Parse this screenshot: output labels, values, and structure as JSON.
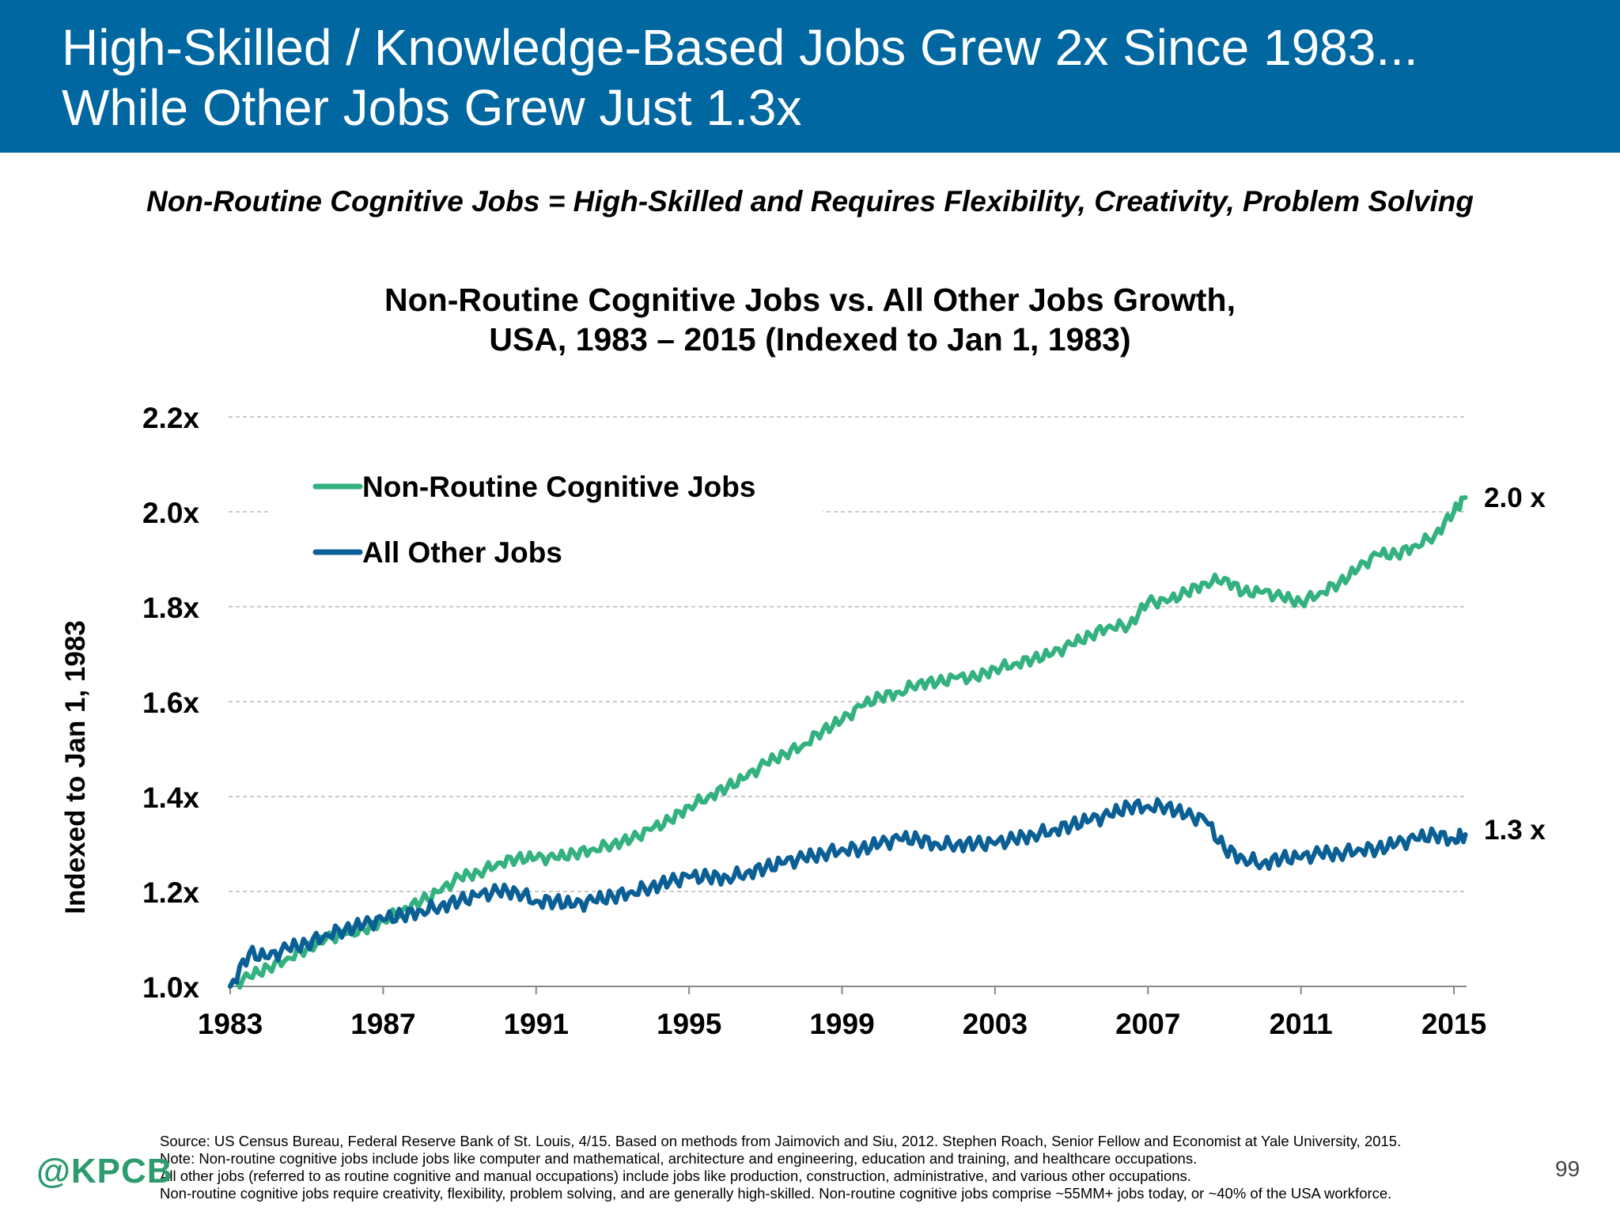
{
  "header": {
    "title_line1": "High-Skilled / Knowledge-Based Jobs Grew 2x Since 1983...",
    "title_line2": "While Other Jobs Grew Just 1.3x"
  },
  "subtitle": "Non-Routine Cognitive Jobs = High-Skilled and Requires Flexibility, Creativity, Problem Solving",
  "chart_data": {
    "type": "line",
    "title_line1": "Non-Routine Cognitive Jobs vs. All Other Jobs Growth,",
    "title_line2": "USA, 1983 – 2015 (Indexed to Jan 1, 1983)",
    "xlabel": "",
    "ylabel": "Indexed to Jan 1, 1983",
    "x_ticks": [
      "1983",
      "1987",
      "1991",
      "1995",
      "1999",
      "2003",
      "2007",
      "2011",
      "2015"
    ],
    "y_ticks": [
      "1.0x",
      "1.2x",
      "1.4x",
      "1.6x",
      "1.8x",
      "2.0x",
      "2.2x"
    ],
    "xlim": [
      1983,
      2015.3
    ],
    "ylim": [
      1.0,
      2.2
    ],
    "grid": "horizontal dashed",
    "legend_position": "top-left",
    "series": [
      {
        "name": "Non-Routine Cognitive Jobs",
        "color": "#33b17f",
        "end_label": "2.0 x",
        "points": [
          [
            1983.0,
            1.0
          ],
          [
            1983.5,
            1.02
          ],
          [
            1984.0,
            1.04
          ],
          [
            1984.5,
            1.06
          ],
          [
            1985.0,
            1.08
          ],
          [
            1985.5,
            1.1
          ],
          [
            1986.0,
            1.11
          ],
          [
            1986.5,
            1.12
          ],
          [
            1987.0,
            1.14
          ],
          [
            1987.5,
            1.16
          ],
          [
            1988.0,
            1.18
          ],
          [
            1988.5,
            1.2
          ],
          [
            1989.0,
            1.23
          ],
          [
            1989.5,
            1.24
          ],
          [
            1990.0,
            1.26
          ],
          [
            1990.5,
            1.27
          ],
          [
            1991.0,
            1.27
          ],
          [
            1991.5,
            1.27
          ],
          [
            1992.0,
            1.28
          ],
          [
            1992.5,
            1.29
          ],
          [
            1993.0,
            1.3
          ],
          [
            1993.5,
            1.31
          ],
          [
            1994.0,
            1.33
          ],
          [
            1994.5,
            1.35
          ],
          [
            1995.0,
            1.38
          ],
          [
            1995.5,
            1.4
          ],
          [
            1996.0,
            1.42
          ],
          [
            1996.5,
            1.44
          ],
          [
            1997.0,
            1.47
          ],
          [
            1997.5,
            1.49
          ],
          [
            1998.0,
            1.51
          ],
          [
            1998.5,
            1.54
          ],
          [
            1999.0,
            1.56
          ],
          [
            1999.5,
            1.59
          ],
          [
            2000.0,
            1.61
          ],
          [
            2000.5,
            1.62
          ],
          [
            2001.0,
            1.64
          ],
          [
            2001.5,
            1.64
          ],
          [
            2002.0,
            1.65
          ],
          [
            2002.5,
            1.65
          ],
          [
            2003.0,
            1.67
          ],
          [
            2003.5,
            1.68
          ],
          [
            2004.0,
            1.69
          ],
          [
            2004.5,
            1.7
          ],
          [
            2005.0,
            1.72
          ],
          [
            2005.5,
            1.74
          ],
          [
            2006.0,
            1.76
          ],
          [
            2006.5,
            1.76
          ],
          [
            2007.0,
            1.81
          ],
          [
            2007.5,
            1.81
          ],
          [
            2008.0,
            1.83
          ],
          [
            2008.5,
            1.85
          ],
          [
            2009.0,
            1.86
          ],
          [
            2009.5,
            1.83
          ],
          [
            2010.0,
            1.83
          ],
          [
            2010.5,
            1.82
          ],
          [
            2011.0,
            1.81
          ],
          [
            2011.5,
            1.83
          ],
          [
            2012.0,
            1.85
          ],
          [
            2012.5,
            1.88
          ],
          [
            2013.0,
            1.91
          ],
          [
            2013.5,
            1.91
          ],
          [
            2014.0,
            1.93
          ],
          [
            2014.5,
            1.95
          ],
          [
            2015.0,
            2.0
          ],
          [
            2015.3,
            2.03
          ]
        ]
      },
      {
        "name": "All Other Jobs",
        "color": "#0a5f95",
        "end_label": "1.3 x",
        "points": [
          [
            1983.0,
            1.0
          ],
          [
            1983.5,
            1.07
          ],
          [
            1984.0,
            1.06
          ],
          [
            1984.5,
            1.08
          ],
          [
            1985.0,
            1.09
          ],
          [
            1985.5,
            1.11
          ],
          [
            1986.0,
            1.12
          ],
          [
            1986.5,
            1.13
          ],
          [
            1987.0,
            1.14
          ],
          [
            1987.5,
            1.15
          ],
          [
            1988.0,
            1.16
          ],
          [
            1988.5,
            1.17
          ],
          [
            1989.0,
            1.18
          ],
          [
            1989.5,
            1.19
          ],
          [
            1990.0,
            1.2
          ],
          [
            1990.5,
            1.2
          ],
          [
            1991.0,
            1.18
          ],
          [
            1991.5,
            1.18
          ],
          [
            1992.0,
            1.17
          ],
          [
            1992.5,
            1.18
          ],
          [
            1993.0,
            1.19
          ],
          [
            1993.5,
            1.2
          ],
          [
            1994.0,
            1.21
          ],
          [
            1994.5,
            1.22
          ],
          [
            1995.0,
            1.23
          ],
          [
            1995.5,
            1.23
          ],
          [
            1996.0,
            1.23
          ],
          [
            1996.5,
            1.24
          ],
          [
            1997.0,
            1.25
          ],
          [
            1997.5,
            1.26
          ],
          [
            1998.0,
            1.27
          ],
          [
            1998.5,
            1.28
          ],
          [
            1999.0,
            1.29
          ],
          [
            1999.5,
            1.29
          ],
          [
            2000.0,
            1.3
          ],
          [
            2000.5,
            1.31
          ],
          [
            2001.0,
            1.31
          ],
          [
            2001.5,
            1.3
          ],
          [
            2002.0,
            1.3
          ],
          [
            2002.5,
            1.3
          ],
          [
            2003.0,
            1.3
          ],
          [
            2003.5,
            1.31
          ],
          [
            2004.0,
            1.32
          ],
          [
            2004.5,
            1.33
          ],
          [
            2005.0,
            1.34
          ],
          [
            2005.5,
            1.35
          ],
          [
            2006.0,
            1.36
          ],
          [
            2006.5,
            1.38
          ],
          [
            2007.0,
            1.38
          ],
          [
            2007.5,
            1.38
          ],
          [
            2008.0,
            1.36
          ],
          [
            2008.5,
            1.35
          ],
          [
            2009.0,
            1.29
          ],
          [
            2009.5,
            1.27
          ],
          [
            2010.0,
            1.26
          ],
          [
            2010.5,
            1.27
          ],
          [
            2011.0,
            1.27
          ],
          [
            2011.5,
            1.28
          ],
          [
            2012.0,
            1.28
          ],
          [
            2012.5,
            1.29
          ],
          [
            2013.0,
            1.29
          ],
          [
            2013.5,
            1.3
          ],
          [
            2014.0,
            1.31
          ],
          [
            2014.5,
            1.32
          ],
          [
            2015.0,
            1.31
          ],
          [
            2015.3,
            1.32
          ]
        ]
      }
    ]
  },
  "footer": {
    "line1": "Source: US Census Bureau, Federal Reserve Bank of St. Louis, 4/15. Based on methods from Jaimovich and Siu, 2012. Stephen Roach, Senior Fellow and Economist at Yale University, 2015.",
    "line2": "Note: Non-routine cognitive jobs include  jobs like computer and mathematical, architecture and engineering, education and training, and healthcare occupations.",
    "line3": "All other jobs (referred  to as routine cognitive and manual occupations) include jobs like production, construction, administrative, and various other occupations.",
    "line4": "Non-routine cognitive jobs require creativity, flexibility, problem solving, and are generally high-skilled. Non-routine cognitive jobs comprise ~55MM+ jobs today, or ~40% of the USA workforce."
  },
  "logo": "@KPCB",
  "page_number": "99"
}
